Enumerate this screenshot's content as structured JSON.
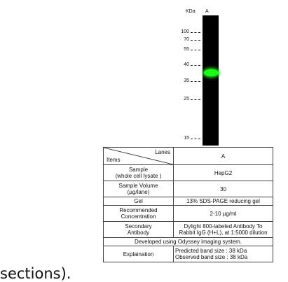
{
  "blot": {
    "unit_label": "KDa",
    "lane_label": "A",
    "band_color": "#19ff19",
    "markers": [
      "100",
      "70",
      "55",
      "40",
      "35",
      "25",
      "15"
    ],
    "observed_band_kda": 38
  },
  "table": {
    "header": {
      "top_label": "Lanes",
      "bottom_label": "Items",
      "value": "A"
    },
    "rows": [
      {
        "item": [
          "Sample",
          "(whole cell lysate )"
        ],
        "value": [
          "HepG2"
        ]
      },
      {
        "item": [
          "Sample Volume",
          "(µg/lane)"
        ],
        "value": [
          "30"
        ]
      },
      {
        "item": [
          "Gel"
        ],
        "value": [
          "13% SDS-PAGE reducing gel"
        ]
      },
      {
        "item": [
          "Recommended",
          "Concentration"
        ],
        "value": [
          "2-10 µg/ml"
        ]
      },
      {
        "item": [
          "Secondary",
          "Antibody"
        ],
        "value": [
          "Dylight 800-labeled  Antibody To",
          "Rabbit  IgG (H+L), at 1:5000 dilution"
        ]
      }
    ],
    "span_row": "Developed using Odyssey imaging system.",
    "explanation": {
      "item": "Explaination",
      "value": [
        "Predicted band size : 38 kDa",
        "Observed band size : 38 kDa"
      ]
    }
  },
  "fragment_text": "sections)."
}
